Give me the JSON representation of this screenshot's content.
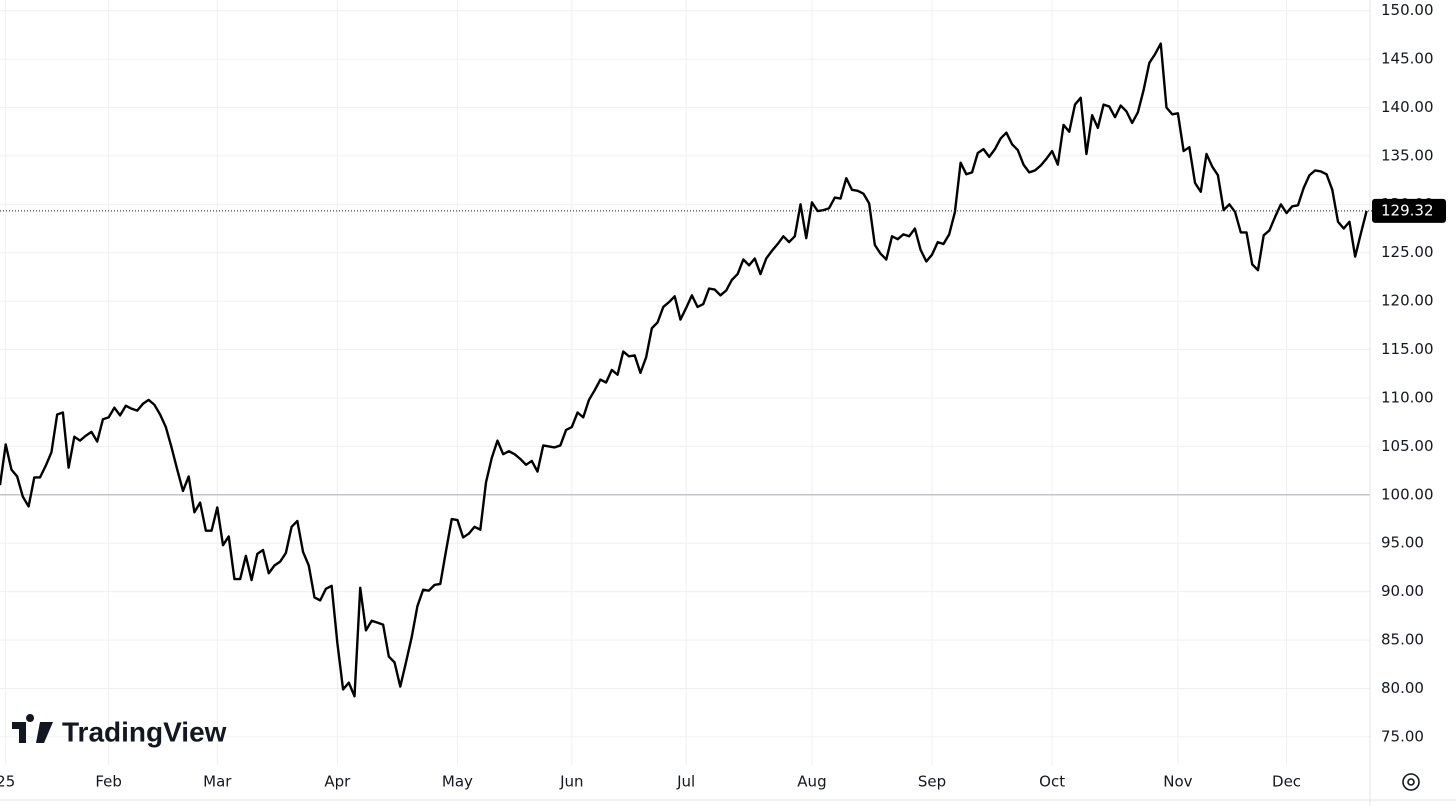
{
  "chart_data": {
    "type": "line",
    "color": "#000000",
    "grid": true,
    "reference_line": 100,
    "watermark": "TradingView",
    "ylim": [
      72.1,
      151.1
    ],
    "yticks": [
      {
        "value": 75,
        "label": "75.00"
      },
      {
        "value": 80,
        "label": "80.00"
      },
      {
        "value": 85,
        "label": "85.00"
      },
      {
        "value": 90,
        "label": "90.00"
      },
      {
        "value": 95,
        "label": "95.00"
      },
      {
        "value": 100,
        "label": "100.00"
      },
      {
        "value": 105,
        "label": "105.00"
      },
      {
        "value": 110,
        "label": "110.00"
      },
      {
        "value": 115,
        "label": "115.00"
      },
      {
        "value": 120,
        "label": "120.00"
      },
      {
        "value": 125,
        "label": "125.00"
      },
      {
        "value": 130,
        "label": "130.00"
      },
      {
        "value": 135,
        "label": "135.00"
      },
      {
        "value": 140,
        "label": "140.00"
      },
      {
        "value": 145,
        "label": "145.00"
      },
      {
        "value": 150,
        "label": "150.00"
      }
    ],
    "categories": [
      null,
      "25",
      null,
      null,
      null,
      null,
      null,
      null,
      null,
      null,
      null,
      null,
      null,
      null,
      null,
      null,
      null,
      null,
      null,
      "Feb",
      null,
      null,
      null,
      null,
      null,
      null,
      null,
      null,
      null,
      null,
      null,
      null,
      null,
      null,
      null,
      null,
      null,
      null,
      "Mar",
      null,
      null,
      null,
      null,
      null,
      null,
      null,
      null,
      null,
      null,
      null,
      null,
      null,
      null,
      null,
      null,
      null,
      null,
      null,
      null,
      "Apr",
      null,
      null,
      null,
      null,
      null,
      null,
      null,
      null,
      null,
      null,
      null,
      null,
      null,
      null,
      null,
      null,
      null,
      null,
      null,
      null,
      "May",
      null,
      null,
      null,
      null,
      null,
      null,
      null,
      null,
      null,
      null,
      null,
      null,
      null,
      null,
      null,
      null,
      null,
      null,
      null,
      "Jun",
      null,
      null,
      null,
      null,
      null,
      null,
      null,
      null,
      null,
      null,
      null,
      null,
      null,
      null,
      null,
      null,
      null,
      null,
      null,
      "Jul",
      null,
      null,
      null,
      null,
      null,
      null,
      null,
      null,
      null,
      null,
      null,
      null,
      null,
      null,
      null,
      null,
      null,
      null,
      null,
      null,
      null,
      "Aug",
      null,
      null,
      null,
      null,
      null,
      null,
      null,
      null,
      null,
      null,
      null,
      null,
      null,
      null,
      null,
      null,
      null,
      null,
      null,
      null,
      "Sep",
      null,
      null,
      null,
      null,
      null,
      null,
      null,
      null,
      null,
      null,
      null,
      null,
      null,
      null,
      null,
      null,
      null,
      null,
      null,
      null,
      "Oct",
      null,
      null,
      null,
      null,
      null,
      null,
      null,
      null,
      null,
      null,
      null,
      null,
      null,
      null,
      null,
      null,
      null,
      null,
      null,
      null,
      null,
      "Nov",
      null,
      null,
      null,
      null,
      null,
      null,
      null,
      null,
      null,
      null,
      null,
      null,
      null,
      null,
      null,
      null,
      null,
      null,
      "Dec",
      null,
      null,
      null,
      null,
      null,
      null,
      null,
      null,
      null,
      null,
      null,
      null,
      null,
      null
    ],
    "values": [
      101,
      105.2,
      102.6,
      101.9,
      99.8,
      98.8,
      101.8,
      101.8,
      103,
      104.4,
      108.3,
      108.5,
      102.8,
      106,
      105.6,
      106.1,
      106.5,
      105.5,
      107.8,
      108,
      109,
      108.2,
      109.2,
      108.9,
      108.7,
      109.4,
      109.8,
      109.3,
      108.3,
      107,
      104.9,
      102.6,
      100.4,
      101.9,
      98.2,
      99.2,
      96.3,
      96.3,
      98.7,
      94.8,
      95.7,
      91.3,
      91.3,
      93.7,
      91.2,
      93.9,
      94.3,
      91.9,
      92.7,
      93.1,
      94,
      96.7,
      97.3,
      94.1,
      92.7,
      89.4,
      89.1,
      90.3,
      90.6,
      84.7,
      79.9,
      80.6,
      79.2,
      90.4,
      86,
      87,
      86.8,
      86.6,
      83.3,
      82.7,
      80.2,
      82.7,
      85.3,
      88.5,
      90.2,
      90.1,
      90.7,
      90.8,
      94.2,
      97.5,
      97.4,
      95.6,
      96,
      96.7,
      96.4,
      101.3,
      103.8,
      105.6,
      104.2,
      104.5,
      104.2,
      103.7,
      103.1,
      103.5,
      102.4,
      105.1,
      105,
      104.9,
      105.1,
      106.7,
      107,
      108.5,
      108,
      109.8,
      110.8,
      111.9,
      111.6,
      112.9,
      112.4,
      114.8,
      114.3,
      114.4,
      112.6,
      114.2,
      117.2,
      117.8,
      119.4,
      119.9,
      120.5,
      118.1,
      119.3,
      120.6,
      119.4,
      119.7,
      121.3,
      121.2,
      120.6,
      121.1,
      122.2,
      122.8,
      124.3,
      123.7,
      124.4,
      122.8,
      124.4,
      125.2,
      125.9,
      126.7,
      126.1,
      126.7,
      130,
      126.5,
      130.2,
      129.3,
      129.4,
      129.6,
      130.7,
      130.6,
      132.7,
      131.5,
      131.4,
      131.1,
      130.1,
      125.8,
      124.9,
      124.3,
      126.7,
      126.4,
      126.9,
      126.7,
      127.5,
      125.3,
      124.1,
      124.8,
      126.1,
      125.9,
      126.9,
      129.2,
      134.3,
      133.1,
      133.3,
      135.3,
      135.7,
      134.9,
      135.7,
      136.8,
      137.4,
      136.2,
      135.6,
      134.1,
      133.3,
      133.5,
      134,
      134.7,
      135.5,
      134.1,
      138.2,
      137.5,
      140.3,
      141,
      135.2,
      139.2,
      137.9,
      140.3,
      140.1,
      139,
      140.2,
      139.6,
      138.4,
      139.5,
      141.8,
      144.6,
      145.5,
      146.6,
      140,
      139.3,
      139.4,
      135.5,
      135.9,
      132.2,
      131.3,
      135.2,
      133.9,
      133,
      129.4,
      130,
      129.2,
      127.1,
      127.1,
      123.8,
      123.2,
      126.8,
      127.3,
      128.7,
      130,
      129.1,
      129.8,
      129.9,
      131.7,
      133,
      133.5,
      133.4,
      133.1,
      131.5,
      128.2,
      127.5,
      128.2,
      124.6,
      127,
      129.32
    ]
  }
}
